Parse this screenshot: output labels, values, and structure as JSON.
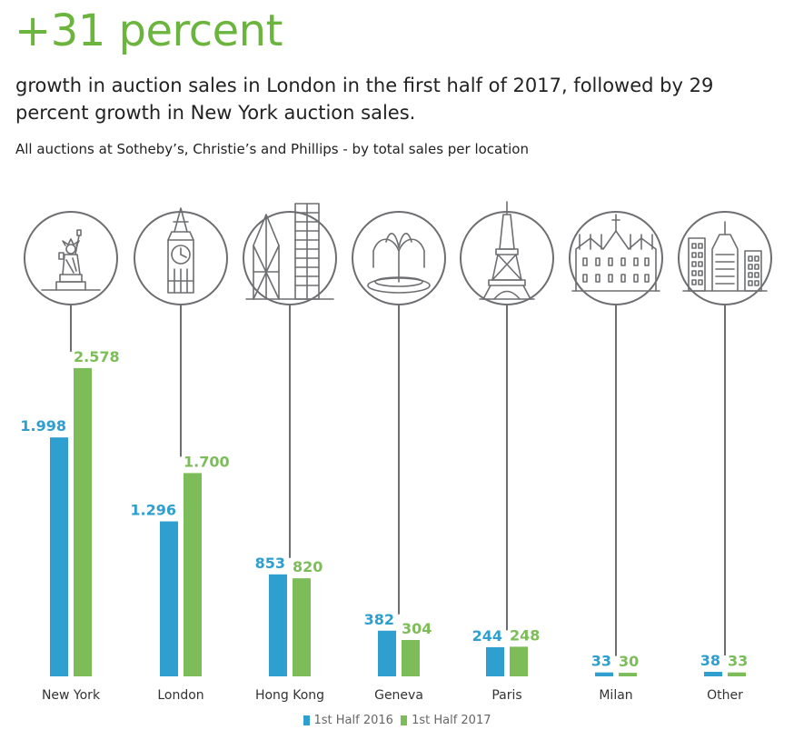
{
  "header": {
    "headline": "+31 percent",
    "subhead": "growth in auction sales in London in the first half of 2017, followed by 29 percent growth in New York auction sales.",
    "caption": "All auctions at Sotheby’s, Christie’s and Phillips - by total sales per location"
  },
  "colors": {
    "series_2016": "#2e9fcf",
    "series_2017": "#7dbd59",
    "icon_stroke": "#6d6e71",
    "headline": "#6bb43e"
  },
  "legend": {
    "items": [
      "1st Half 2016",
      "1st Half 2017"
    ],
    "placement": "bottom-center"
  },
  "chart_data": {
    "type": "bar",
    "title": "",
    "xlabel": "",
    "ylabel": "",
    "ylim": [
      0,
      2600
    ],
    "grid": false,
    "categories": [
      "New York",
      "London",
      "Hong Kong",
      "Geneva",
      "Paris",
      "Milan",
      "Other"
    ],
    "icons": [
      "statue-of-liberty-icon",
      "big-ben-icon",
      "hong-kong-skyline-icon",
      "fountain-icon",
      "eiffel-tower-icon",
      "milan-cathedral-icon",
      "city-buildings-icon"
    ],
    "series": [
      {
        "name": "1st Half 2016",
        "values": [
          1998,
          1296,
          853,
          382,
          244,
          33,
          38
        ],
        "labels": [
          "1.998",
          "1.296",
          "853",
          "382",
          "244",
          "33",
          "38"
        ]
      },
      {
        "name": "1st Half 2017",
        "values": [
          2578,
          1700,
          820,
          304,
          248,
          30,
          33
        ],
        "labels": [
          "2.578",
          "1.700",
          "820",
          "304",
          "248",
          "30",
          "33"
        ]
      }
    ]
  }
}
